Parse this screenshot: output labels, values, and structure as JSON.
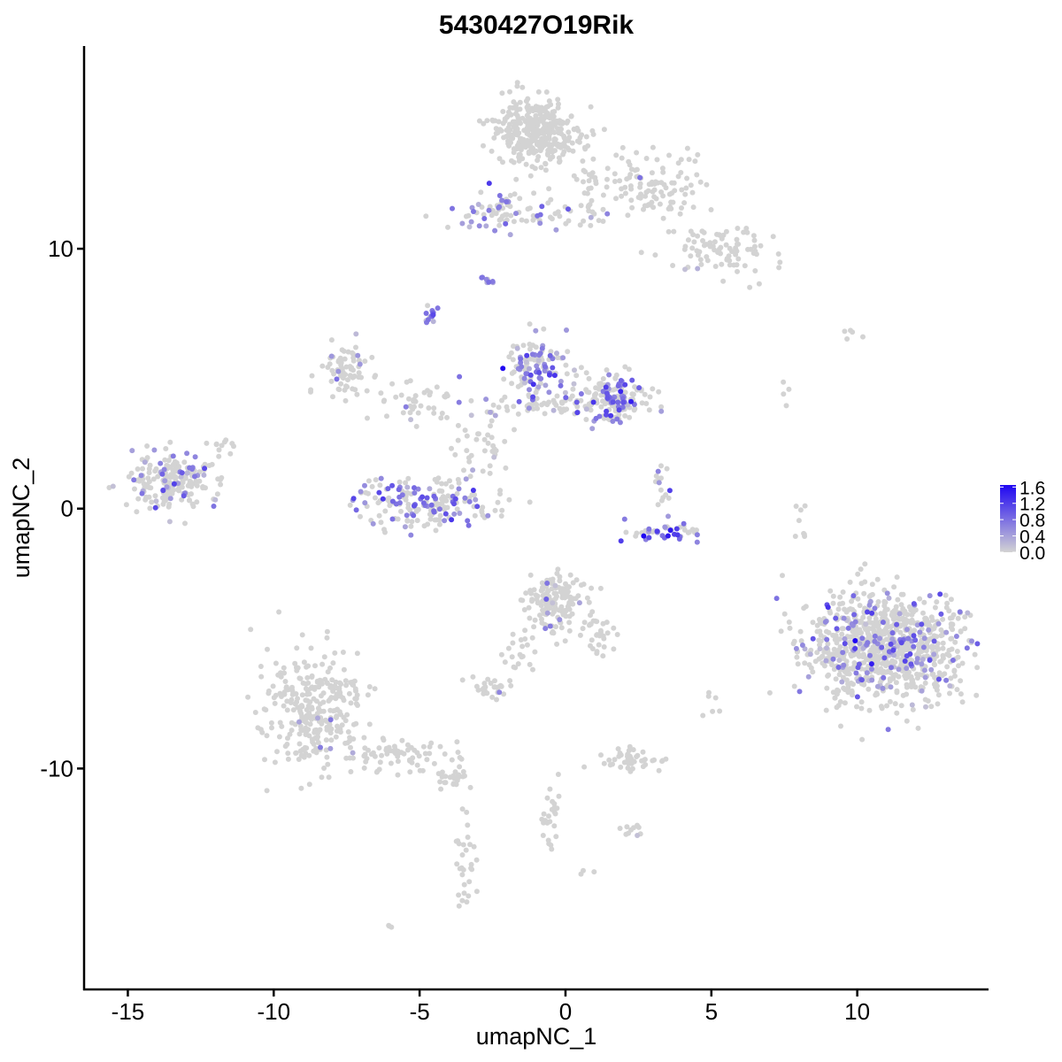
{
  "chart_data": {
    "type": "scatter",
    "title": "5430427O19Rik",
    "xlabel": "umapNC_1",
    "ylabel": "umapNC_2",
    "xlim": [
      -16.5,
      14.5
    ],
    "ylim": [
      -18.5,
      17.8
    ],
    "x_ticks": [
      -15,
      -10,
      -5,
      0,
      5,
      10
    ],
    "y_ticks": [
      -10,
      0,
      10
    ],
    "grid": false,
    "legend": {
      "placement": "right",
      "type": "colorbar",
      "min": 0.0,
      "max": 1.65,
      "ticks": [
        1.6,
        1.2,
        0.8,
        0.4,
        0.0
      ],
      "low_color": "#d3d3d3",
      "high_color": "#1f06f2"
    },
    "point_color_low": "#d3d3d3",
    "point_color_high": "#1f06f2",
    "clusters": [
      {
        "x": -1.0,
        "y": 14.5,
        "sx": 0.75,
        "sy": 0.65,
        "n": 360,
        "expr_frac": 0.0,
        "expr_mean": 0.0
      },
      {
        "x": 2.6,
        "y": 12.5,
        "sx": 1.0,
        "sy": 0.6,
        "n": 120,
        "expr_frac": 0.02,
        "expr_mean": 0.4
      },
      {
        "x": 5.2,
        "y": 10.0,
        "sx": 0.9,
        "sy": 0.6,
        "n": 90,
        "expr_frac": 0.02,
        "expr_mean": 0.4
      },
      {
        "x": -2.3,
        "y": 11.5,
        "sx": 0.7,
        "sy": 0.4,
        "n": 70,
        "expr_frac": 0.35,
        "expr_mean": 0.6
      },
      {
        "x": 0.3,
        "y": 11.3,
        "sx": 1.0,
        "sy": 0.25,
        "n": 30,
        "expr_frac": 0.1,
        "expr_mean": 0.5
      },
      {
        "x": -2.7,
        "y": 8.8,
        "sx": 0.12,
        "sy": 0.12,
        "n": 8,
        "expr_frac": 0.6,
        "expr_mean": 0.6
      },
      {
        "x": -4.6,
        "y": 7.4,
        "sx": 0.15,
        "sy": 0.2,
        "n": 14,
        "expr_frac": 0.8,
        "expr_mean": 0.8
      },
      {
        "x": -1.0,
        "y": 5.5,
        "sx": 0.5,
        "sy": 0.5,
        "n": 110,
        "expr_frac": 0.5,
        "expr_mean": 0.7
      },
      {
        "x": 1.7,
        "y": 4.3,
        "sx": 0.6,
        "sy": 0.45,
        "n": 150,
        "expr_frac": 0.45,
        "expr_mean": 0.75
      },
      {
        "x": -0.5,
        "y": 4.0,
        "sx": 1.2,
        "sy": 0.3,
        "n": 70,
        "expr_frac": 0.2,
        "expr_mean": 0.6
      },
      {
        "x": -7.5,
        "y": 5.2,
        "sx": 0.45,
        "sy": 0.55,
        "n": 75,
        "expr_frac": 0.1,
        "expr_mean": 0.5
      },
      {
        "x": -5.0,
        "y": 4.0,
        "sx": 0.9,
        "sy": 0.5,
        "n": 45,
        "expr_frac": 0.2,
        "expr_mean": 0.6
      },
      {
        "x": -5.0,
        "y": 0.2,
        "sx": 1.2,
        "sy": 0.5,
        "n": 190,
        "expr_frac": 0.35,
        "expr_mean": 0.7
      },
      {
        "x": -2.8,
        "y": 2.2,
        "sx": 0.6,
        "sy": 0.6,
        "n": 35,
        "expr_frac": 0.05,
        "expr_mean": 0.4
      },
      {
        "x": 3.5,
        "y": -0.9,
        "sx": 0.7,
        "sy": 0.2,
        "n": 45,
        "expr_frac": 0.5,
        "expr_mean": 0.9
      },
      {
        "x": 3.3,
        "y": 0.8,
        "sx": 0.25,
        "sy": 0.5,
        "n": 16,
        "expr_frac": 0.3,
        "expr_mean": 0.6
      },
      {
        "x": -13.5,
        "y": 1.1,
        "sx": 0.8,
        "sy": 0.55,
        "n": 210,
        "expr_frac": 0.2,
        "expr_mean": 0.6
      },
      {
        "x": -11.8,
        "y": 2.4,
        "sx": 0.25,
        "sy": 0.25,
        "n": 10,
        "expr_frac": 0.0,
        "expr_mean": 0.0
      },
      {
        "x": 10.9,
        "y": -5.3,
        "sx": 1.3,
        "sy": 1.05,
        "n": 950,
        "expr_frac": 0.17,
        "expr_mean": 0.65
      },
      {
        "x": -8.6,
        "y": -7.8,
        "sx": 0.85,
        "sy": 1.1,
        "n": 300,
        "expr_frac": 0.02,
        "expr_mean": 0.5
      },
      {
        "x": -5.6,
        "y": -9.5,
        "sx": 1.0,
        "sy": 0.4,
        "n": 70,
        "expr_frac": 0.0,
        "expr_mean": 0.0
      },
      {
        "x": -3.9,
        "y": -10.4,
        "sx": 0.3,
        "sy": 0.2,
        "n": 25,
        "expr_frac": 0.0,
        "expr_mean": 0.0
      },
      {
        "x": -3.5,
        "y": -14.0,
        "sx": 0.2,
        "sy": 1.1,
        "n": 30,
        "expr_frac": 0.0,
        "expr_mean": 0.0
      },
      {
        "x": -0.3,
        "y": -3.6,
        "sx": 0.5,
        "sy": 0.55,
        "n": 160,
        "expr_frac": 0.02,
        "expr_mean": 0.5
      },
      {
        "x": -1.5,
        "y": -5.5,
        "sx": 0.3,
        "sy": 0.5,
        "n": 20,
        "expr_frac": 0.0,
        "expr_mean": 0.0
      },
      {
        "x": 1.1,
        "y": -4.8,
        "sx": 0.3,
        "sy": 0.5,
        "n": 25,
        "expr_frac": 0.0,
        "expr_mean": 0.0
      },
      {
        "x": -2.6,
        "y": -6.9,
        "sx": 0.35,
        "sy": 0.2,
        "n": 30,
        "expr_frac": 0.05,
        "expr_mean": 0.6
      },
      {
        "x": 2.3,
        "y": -9.7,
        "sx": 0.65,
        "sy": 0.2,
        "n": 45,
        "expr_frac": 0.0,
        "expr_mean": 0.0
      },
      {
        "x": -0.5,
        "y": -11.5,
        "sx": 0.2,
        "sy": 0.9,
        "n": 25,
        "expr_frac": 0.0,
        "expr_mean": 0.0
      },
      {
        "x": 2.3,
        "y": -12.5,
        "sx": 0.2,
        "sy": 0.15,
        "n": 10,
        "expr_frac": 0.1,
        "expr_mean": 0.4
      },
      {
        "x": 8.0,
        "y": -0.5,
        "sx": 0.15,
        "sy": 0.6,
        "n": 8,
        "expr_frac": 0.0,
        "expr_mean": 0.0
      },
      {
        "x": 9.7,
        "y": 6.7,
        "sx": 0.2,
        "sy": 0.1,
        "n": 5,
        "expr_frac": 0.0,
        "expr_mean": 0.0
      },
      {
        "x": 4.9,
        "y": -7.5,
        "sx": 0.2,
        "sy": 0.3,
        "n": 6,
        "expr_frac": 0.0,
        "expr_mean": 0.0
      },
      {
        "x": -6.0,
        "y": -16.0,
        "sx": 0.1,
        "sy": 0.1,
        "n": 3,
        "expr_frac": 0.0,
        "expr_mean": 0.0
      },
      {
        "x": 0.6,
        "y": -14.0,
        "sx": 0.1,
        "sy": 0.1,
        "n": 3,
        "expr_frac": 0.0,
        "expr_mean": 0.0
      },
      {
        "x": 1.2,
        "y": -4.9,
        "sx": 0.5,
        "sy": 0.1,
        "n": 5,
        "expr_frac": 0.0,
        "expr_mean": 0.0
      },
      {
        "x": 7.6,
        "y": 4.6,
        "sx": 0.15,
        "sy": 0.3,
        "n": 4,
        "expr_frac": 0.0,
        "expr_mean": 0.0
      }
    ]
  }
}
